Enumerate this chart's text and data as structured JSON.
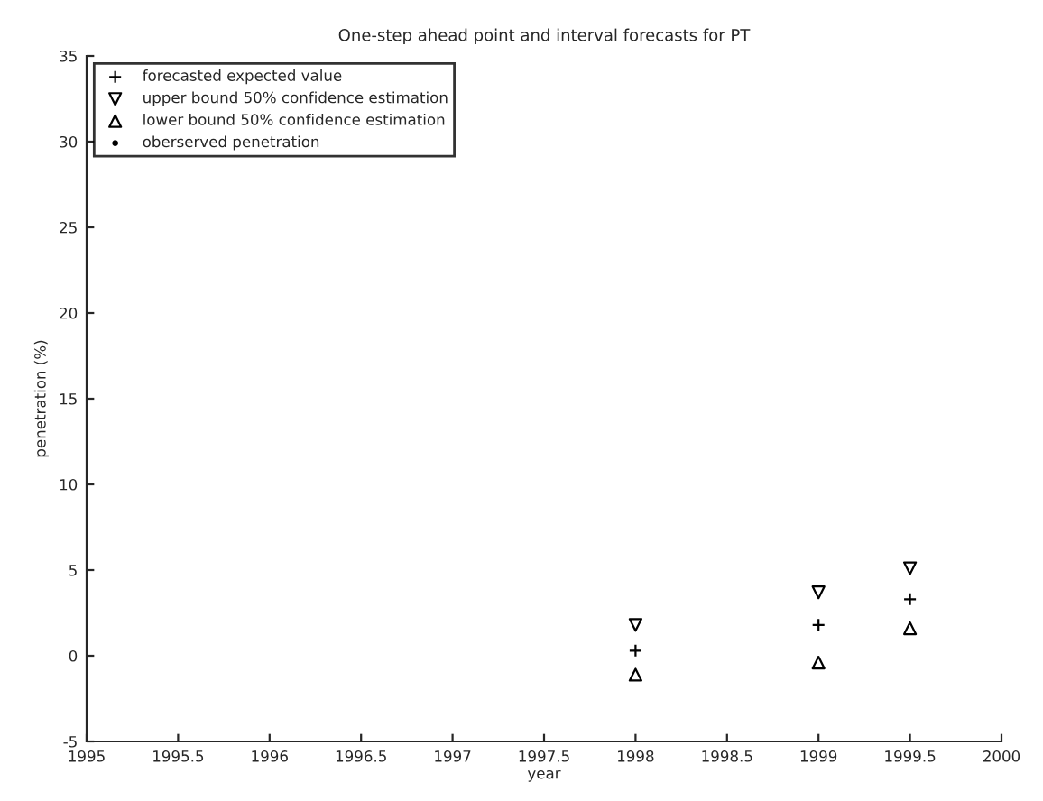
{
  "chart_data": {
    "type": "scatter",
    "title": "One-step ahead point and interval forecasts for PT",
    "xlabel": "year",
    "ylabel": "penetration (%)",
    "x": [
      1998,
      1999,
      1999.5
    ],
    "series": [
      {
        "name": "forecasted expected value",
        "color": "#000000",
        "marker": "cross",
        "values": [
          0.3,
          1.8,
          3.3
        ]
      },
      {
        "name": "upper bound 50% confidence estimation",
        "color": "#000000",
        "marker": "triangle_down",
        "values": [
          1.8,
          3.7,
          5.1
        ]
      },
      {
        "name": "lower bound 50% confidence estimation",
        "color": "#000000",
        "marker": "triangle",
        "values": [
          -1.1,
          -0.4,
          1.6
        ]
      },
      {
        "name": "oberserved penetration",
        "color": "#000000",
        "marker": "circle",
        "values": [
          null,
          null,
          null
        ]
      }
    ],
    "xlim": [
      1995,
      2000
    ],
    "xticks": [
      1995,
      1995.5,
      1996,
      1996.5,
      1997,
      1997.5,
      1998,
      1998.5,
      1999,
      1999.5,
      2000
    ],
    "ylim": [
      -5,
      35
    ],
    "yticks": [
      -5,
      0,
      5,
      10,
      15,
      20,
      25,
      30,
      35
    ],
    "legend": "top left",
    "grid": false
  }
}
